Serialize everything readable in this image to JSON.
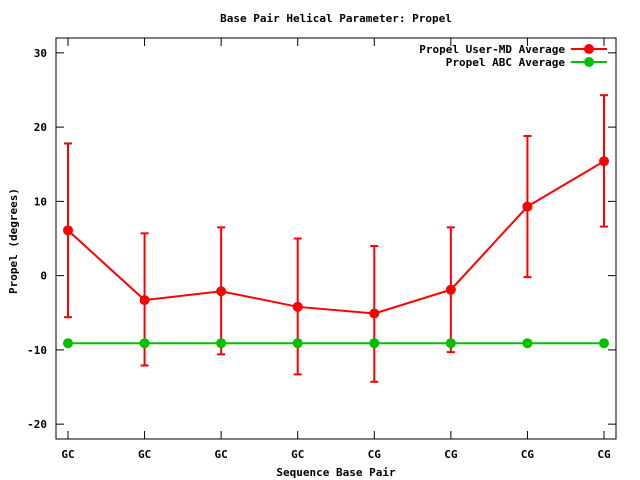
{
  "chart_data": {
    "type": "line",
    "title": "Base Pair Helical Parameter: Propel",
    "xlabel": "Sequence Base Pair",
    "ylabel": "Propel (degrees)",
    "categories": [
      "GC",
      "GC",
      "GC",
      "GC",
      "CG",
      "CG",
      "CG",
      "CG"
    ],
    "ylim": [
      -22,
      32
    ],
    "yticks": [
      -20,
      -10,
      0,
      10,
      20,
      30
    ],
    "ytick_labels": [
      "-20",
      "-10",
      "0",
      "10",
      "20",
      "30"
    ],
    "legend_position": "top-right",
    "grid": false,
    "series": [
      {
        "name": "Propel User-MD Average",
        "color": "#ff0000",
        "values": [
          6.1,
          -3.3,
          -2.1,
          -4.2,
          -5.1,
          -1.9,
          9.3,
          15.4
        ],
        "error_low": [
          -5.6,
          -12.1,
          -10.6,
          -13.3,
          -14.3,
          -10.3,
          -0.2,
          6.6
        ],
        "error_high": [
          17.8,
          5.7,
          6.5,
          5.0,
          4.0,
          6.5,
          18.8,
          24.3
        ]
      },
      {
        "name": "Propel ABC Average",
        "color": "#00c000",
        "values": [
          -9.1,
          -9.1,
          -9.1,
          -9.1,
          -9.1,
          -9.1,
          -9.1,
          -9.1
        ]
      }
    ]
  }
}
